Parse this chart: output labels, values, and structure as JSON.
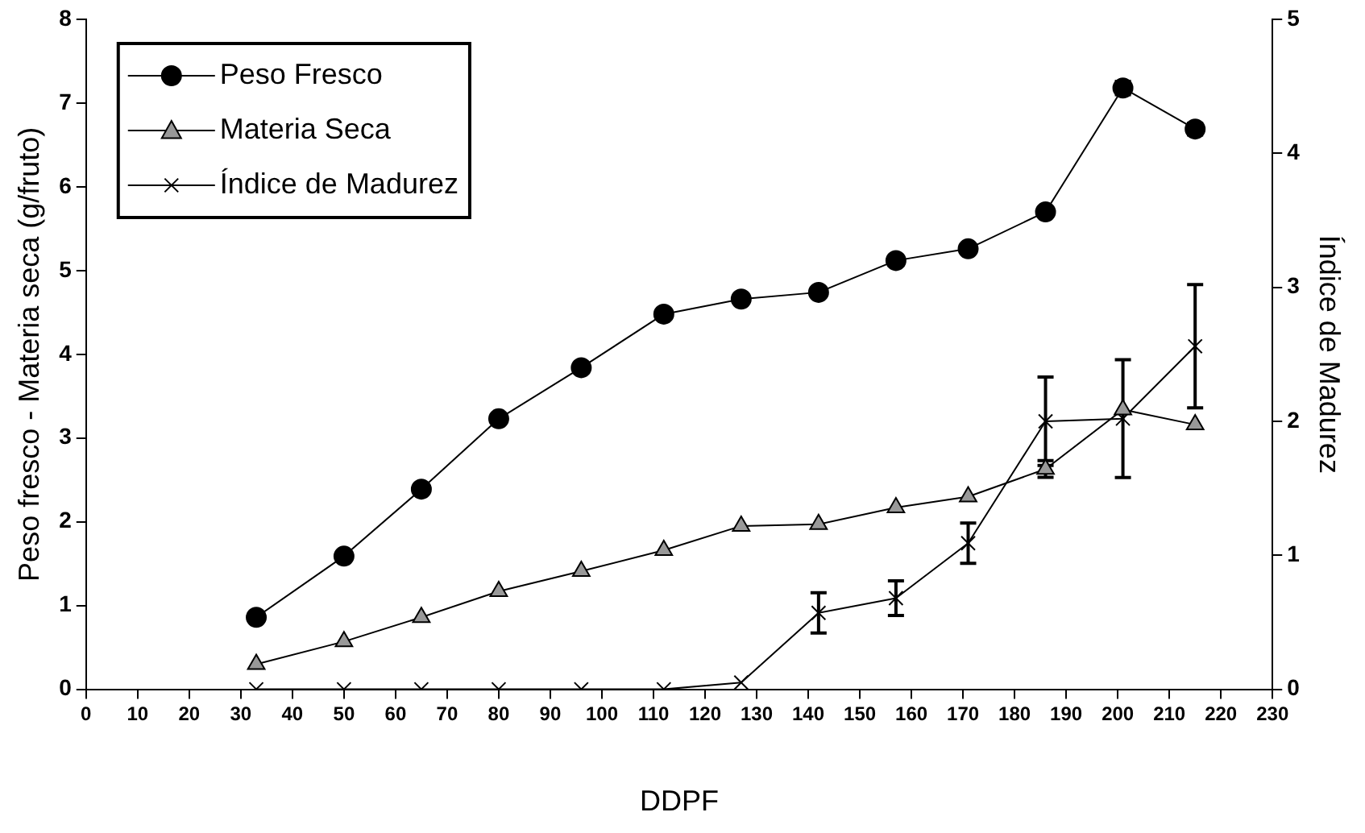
{
  "chart_data": {
    "type": "line",
    "xlabel": "DDPF",
    "ylabel": "Peso fresco - Materia seca (g/fruto)",
    "y2label": "Índice de Madurez",
    "x": [
      33,
      50,
      65,
      80,
      96,
      112,
      127,
      142,
      157,
      171,
      186,
      201,
      215
    ],
    "xlim": [
      0,
      230
    ],
    "xticks": [
      0,
      10,
      20,
      30,
      40,
      50,
      60,
      70,
      80,
      90,
      100,
      110,
      120,
      130,
      140,
      150,
      160,
      170,
      180,
      190,
      200,
      210,
      220,
      230
    ],
    "ylim": [
      0,
      8
    ],
    "yticks": [
      0,
      1,
      2,
      3,
      4,
      5,
      6,
      7,
      8
    ],
    "y2lim": [
      0,
      5
    ],
    "y2ticks": [
      0,
      1,
      2,
      3,
      4,
      5
    ],
    "grid": false,
    "legend": "top left",
    "line_style": "solid",
    "series": [
      {
        "name": "Peso Fresco",
        "color": "#000000",
        "marker": "circle",
        "values": [
          0.86,
          1.59,
          2.39,
          3.23,
          3.84,
          4.48,
          4.66,
          4.74,
          5.12,
          5.26,
          5.7,
          7.18,
          6.69
        ],
        "errors": [
          null,
          null,
          null,
          null,
          null,
          null,
          null,
          0.04,
          0.05,
          0.05,
          0.05,
          0.08,
          0.07
        ]
      },
      {
        "name": "Materia Seca",
        "color": "#999999",
        "marker": "triangle",
        "values": [
          0.3,
          0.57,
          0.86,
          1.17,
          1.41,
          1.66,
          1.95,
          1.97,
          2.17,
          2.3,
          2.63,
          3.34,
          3.16
        ],
        "errors": [
          null,
          null,
          null,
          null,
          null,
          null,
          null,
          null,
          null,
          null,
          0.1,
          null,
          null
        ]
      },
      {
        "name": "Índice de Madurez",
        "color": "#000000",
        "marker": "cross",
        "axis": "y2",
        "values": [
          0,
          0,
          0,
          0,
          0,
          0,
          0.05,
          0.57,
          0.68,
          1.09,
          2.0,
          2.02,
          2.56
        ],
        "errors": [
          null,
          null,
          null,
          null,
          null,
          null,
          null,
          0.15,
          0.13,
          0.15,
          0.33,
          0.44,
          0.46
        ]
      }
    ]
  }
}
